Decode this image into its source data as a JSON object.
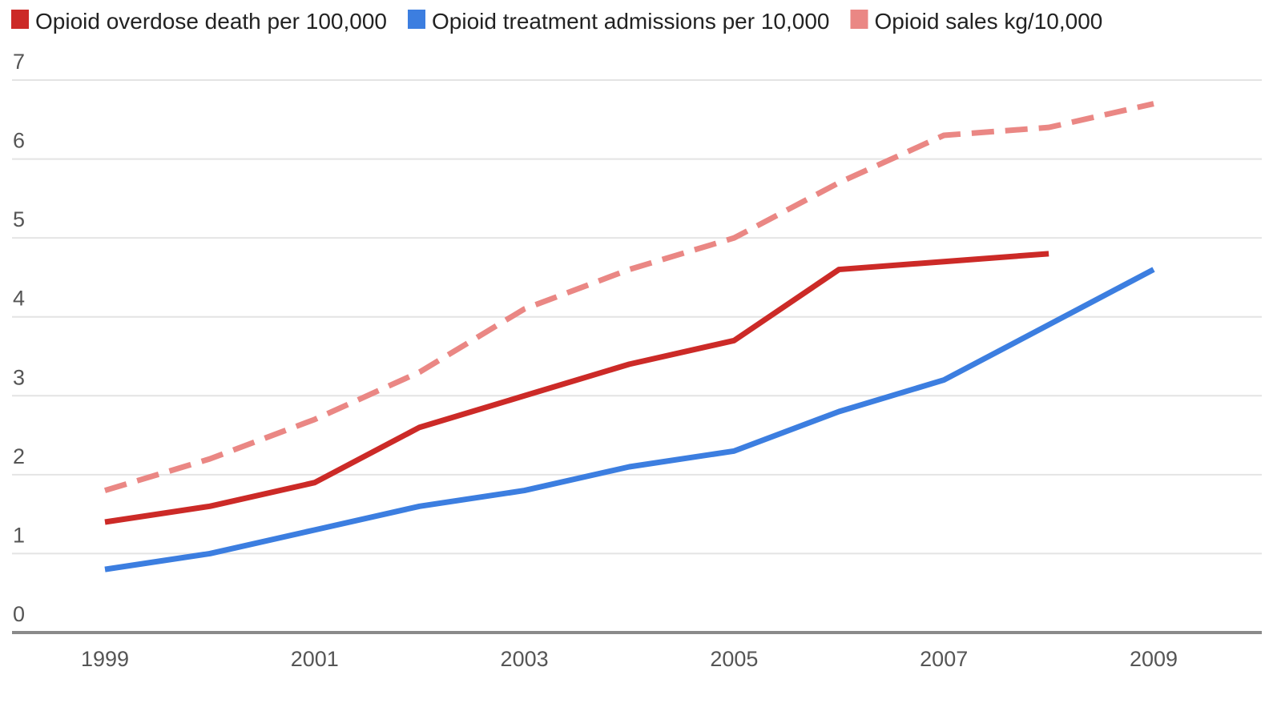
{
  "chart_data": {
    "type": "line",
    "title": "",
    "xlabel": "",
    "ylabel": "",
    "x": [
      1999,
      2000,
      2001,
      2002,
      2003,
      2004,
      2005,
      2006,
      2007,
      2008,
      2009
    ],
    "x_tick_labels": [
      "1999",
      "2001",
      "2003",
      "2005",
      "2007",
      "2009"
    ],
    "y_tick_labels": [
      "0",
      "1",
      "2",
      "3",
      "4",
      "5",
      "6",
      "7"
    ],
    "xlim": [
      1999,
      2009
    ],
    "ylim": [
      0,
      7
    ],
    "grid": true,
    "legend_position": "top-left",
    "series": [
      {
        "name": "Opioid overdose death per 100,000",
        "color": "#cc2a27",
        "dashed": false,
        "values": [
          1.4,
          1.6,
          1.9,
          2.6,
          3.0,
          3.4,
          3.7,
          4.6,
          4.7,
          4.8,
          null
        ]
      },
      {
        "name": "Opioid treatment admissions per 10,000",
        "color": "#3c7ee0",
        "dashed": false,
        "values": [
          0.8,
          1.0,
          1.3,
          1.6,
          1.8,
          2.1,
          2.3,
          2.8,
          3.2,
          3.9,
          4.6
        ]
      },
      {
        "name": "Opioid sales kg/10,000",
        "color": "#ea8784",
        "dashed": true,
        "values": [
          1.8,
          2.2,
          2.7,
          3.3,
          4.1,
          4.6,
          5.0,
          5.7,
          6.3,
          6.4,
          6.7
        ]
      }
    ]
  }
}
